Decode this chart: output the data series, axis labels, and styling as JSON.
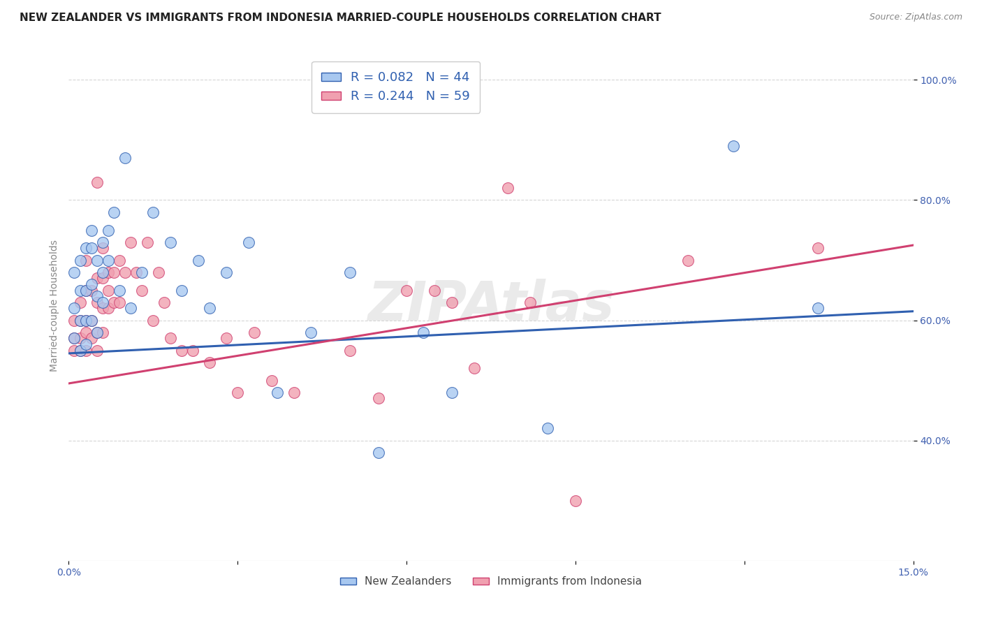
{
  "title": "NEW ZEALANDER VS IMMIGRANTS FROM INDONESIA MARRIED-COUPLE HOUSEHOLDS CORRELATION CHART",
  "source": "Source: ZipAtlas.com",
  "ylabel": "Married-couple Households",
  "xlim": [
    0.0,
    0.15
  ],
  "ylim": [
    0.2,
    1.05
  ],
  "xticks": [
    0.0,
    0.03,
    0.06,
    0.09,
    0.12,
    0.15
  ],
  "xticklabels": [
    "0.0%",
    "",
    "",
    "",
    "",
    "15.0%"
  ],
  "yticks": [
    0.4,
    0.6,
    0.8,
    1.0
  ],
  "yticklabels": [
    "40.0%",
    "60.0%",
    "80.0%",
    "100.0%"
  ],
  "R_nz": 0.082,
  "N_nz": 44,
  "R_id": 0.244,
  "N_id": 59,
  "legend_labels": [
    "New Zealanders",
    "Immigrants from Indonesia"
  ],
  "color_nz": "#a8c8f0",
  "color_id": "#f0a0b0",
  "line_color_nz": "#3060b0",
  "line_color_id": "#d04070",
  "nz_x": [
    0.001,
    0.001,
    0.001,
    0.002,
    0.002,
    0.002,
    0.002,
    0.003,
    0.003,
    0.003,
    0.003,
    0.004,
    0.004,
    0.004,
    0.004,
    0.005,
    0.005,
    0.005,
    0.006,
    0.006,
    0.006,
    0.007,
    0.007,
    0.008,
    0.009,
    0.01,
    0.011,
    0.013,
    0.015,
    0.018,
    0.02,
    0.023,
    0.025,
    0.028,
    0.032,
    0.037,
    0.043,
    0.05,
    0.055,
    0.063,
    0.068,
    0.085,
    0.118,
    0.133
  ],
  "nz_y": [
    0.57,
    0.62,
    0.68,
    0.55,
    0.6,
    0.65,
    0.7,
    0.56,
    0.6,
    0.65,
    0.72,
    0.6,
    0.66,
    0.72,
    0.75,
    0.58,
    0.64,
    0.7,
    0.63,
    0.68,
    0.73,
    0.7,
    0.75,
    0.78,
    0.65,
    0.87,
    0.62,
    0.68,
    0.78,
    0.73,
    0.65,
    0.7,
    0.62,
    0.68,
    0.73,
    0.48,
    0.58,
    0.68,
    0.38,
    0.58,
    0.48,
    0.42,
    0.89,
    0.62
  ],
  "id_x": [
    0.001,
    0.001,
    0.001,
    0.002,
    0.002,
    0.002,
    0.002,
    0.003,
    0.003,
    0.003,
    0.003,
    0.003,
    0.004,
    0.004,
    0.004,
    0.005,
    0.005,
    0.005,
    0.005,
    0.005,
    0.006,
    0.006,
    0.006,
    0.006,
    0.007,
    0.007,
    0.007,
    0.008,
    0.008,
    0.009,
    0.009,
    0.01,
    0.011,
    0.012,
    0.013,
    0.014,
    0.015,
    0.016,
    0.017,
    0.018,
    0.02,
    0.022,
    0.025,
    0.028,
    0.03,
    0.033,
    0.036,
    0.04,
    0.05,
    0.055,
    0.06,
    0.065,
    0.068,
    0.072,
    0.078,
    0.082,
    0.09,
    0.11,
    0.133
  ],
  "id_y": [
    0.55,
    0.57,
    0.6,
    0.55,
    0.57,
    0.6,
    0.63,
    0.55,
    0.58,
    0.6,
    0.65,
    0.7,
    0.57,
    0.6,
    0.65,
    0.55,
    0.58,
    0.63,
    0.67,
    0.83,
    0.58,
    0.62,
    0.67,
    0.72,
    0.62,
    0.65,
    0.68,
    0.63,
    0.68,
    0.63,
    0.7,
    0.68,
    0.73,
    0.68,
    0.65,
    0.73,
    0.6,
    0.68,
    0.63,
    0.57,
    0.55,
    0.55,
    0.53,
    0.57,
    0.48,
    0.58,
    0.5,
    0.48,
    0.55,
    0.47,
    0.65,
    0.65,
    0.63,
    0.52,
    0.82,
    0.63,
    0.3,
    0.7,
    0.72
  ],
  "background_color": "#ffffff",
  "grid_color": "#cccccc",
  "title_fontsize": 11,
  "axis_label_fontsize": 10,
  "tick_fontsize": 10,
  "watermark": "ZIPAtlas"
}
